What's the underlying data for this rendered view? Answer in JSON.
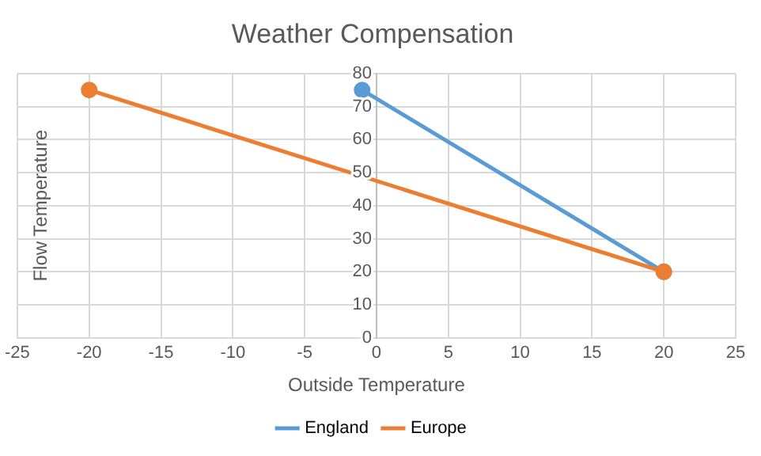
{
  "chart_data": {
    "type": "line",
    "title": "Weather Compensation",
    "xlabel": "Outside Temperature",
    "ylabel": "Flow Temperature",
    "series": [
      {
        "name": "England",
        "color": "#5b9bd5",
        "x": [
          -1,
          20
        ],
        "values": [
          75,
          20
        ]
      },
      {
        "name": "Europe",
        "color": "#ed7d31",
        "x": [
          -20,
          20
        ],
        "values": [
          75,
          20
        ]
      }
    ],
    "xlim": [
      -25,
      25
    ],
    "xticks": [
      -25,
      -20,
      -15,
      -10,
      -5,
      0,
      5,
      10,
      15,
      20,
      25
    ],
    "ylim": [
      0,
      80
    ],
    "yticks": [
      0,
      10,
      20,
      30,
      40,
      50,
      60,
      70,
      80
    ],
    "grid": true,
    "legend": "bottom",
    "marker": "circle",
    "line_style": "solid"
  }
}
